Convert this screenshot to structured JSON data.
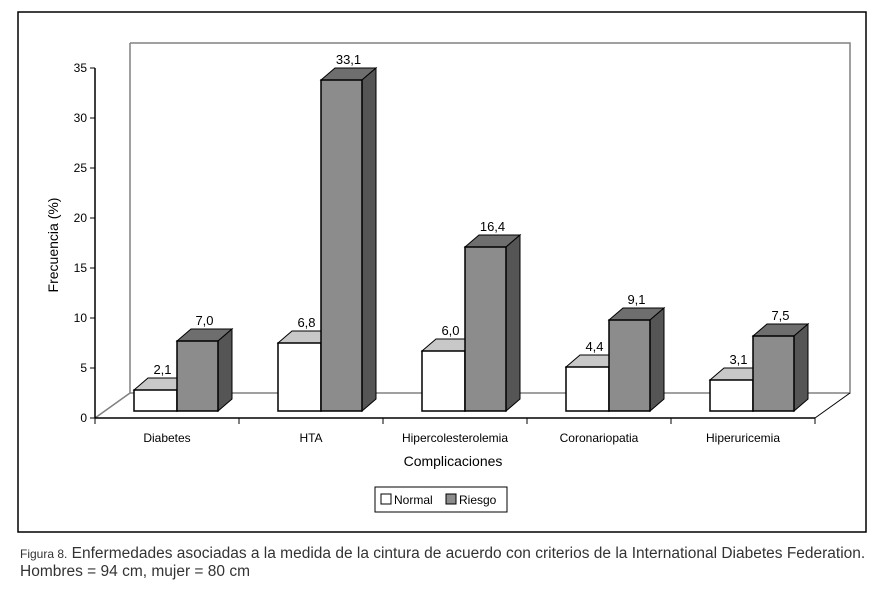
{
  "chart_data": {
    "type": "bar",
    "title": "",
    "xlabel": "Complicaciones",
    "ylabel": "Frecuencia (%)",
    "ylim": [
      0,
      35
    ],
    "yticks": [
      "0",
      "5",
      "10",
      "15",
      "20",
      "25",
      "30",
      "35"
    ],
    "categories": [
      "Diabetes",
      "HTA",
      "Hipercolesterolemia",
      "Coronariopatia",
      "Hiperuricemia"
    ],
    "series": [
      {
        "name": "Normal",
        "values": [
          2.1,
          6.8,
          6.0,
          4.4,
          3.1
        ],
        "labels": [
          "2,1",
          "6,8",
          "6,0",
          "4,4",
          "3,1"
        ],
        "color": "#ffffff"
      },
      {
        "name": "Riesgo",
        "values": [
          7.0,
          33.1,
          16.4,
          9.1,
          7.5
        ],
        "labels": [
          "7,0",
          "33,1",
          "16,4",
          "9,1",
          "7,5"
        ],
        "color": "#8c8c8c"
      }
    ],
    "legend": "bottom-center",
    "grid": false
  },
  "caption": {
    "figure_label": "Figura 8.",
    "text": " Enfermedades asociadas a la medida de la cintura de acuerdo con criterios de la International Diabetes Federation. Hombres = 94 cm, mujer = 80 cm"
  }
}
